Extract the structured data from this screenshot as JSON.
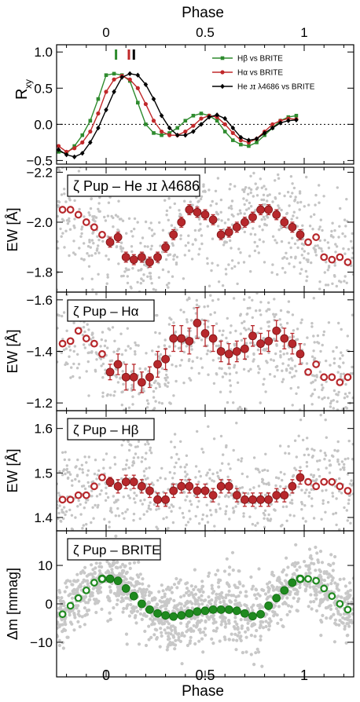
{
  "figure": {
    "top_xlabel": "Phase",
    "bottom_xlabel": "Phase",
    "x_ticks": [
      "0",
      "0.5",
      "1"
    ]
  },
  "chart_data": [
    {
      "type": "line",
      "panel": "cross-correlation",
      "ylabel_main": "R",
      "ylabel_sub": "xy",
      "xlim": [
        -0.25,
        1.25
      ],
      "ylim": [
        -0.55,
        1.1
      ],
      "y_ticks": [
        "1.0",
        "0.5",
        "0.0",
        "−0.5"
      ],
      "markers": [
        {
          "x": 0.05,
          "color": "#2e8b2e"
        },
        {
          "x": 0.115,
          "color": "#c0282a"
        },
        {
          "x": 0.14,
          "color": "#000000"
        }
      ],
      "series": [
        {
          "name": "Hβ vs BRITE",
          "color": "#2e8b2e",
          "marker": "square",
          "x": [
            -0.24,
            -0.2,
            -0.16,
            -0.12,
            -0.08,
            -0.04,
            0.0,
            0.04,
            0.08,
            0.12,
            0.16,
            0.2,
            0.24,
            0.28,
            0.32,
            0.36,
            0.4,
            0.44,
            0.48,
            0.52,
            0.56,
            0.6,
            0.64,
            0.68,
            0.72,
            0.76,
            0.8,
            0.84,
            0.88,
            0.92,
            0.96
          ],
          "y": [
            -0.38,
            -0.4,
            -0.3,
            -0.15,
            0.05,
            0.35,
            0.68,
            0.7,
            0.68,
            0.6,
            0.3,
            0.0,
            -0.12,
            -0.15,
            -0.12,
            -0.05,
            0.05,
            0.12,
            0.15,
            0.12,
            0.05,
            -0.1,
            -0.22,
            -0.28,
            -0.3,
            -0.25,
            -0.15,
            -0.05,
            0.05,
            0.1,
            0.12
          ]
        },
        {
          "name": "Hα vs BRITE",
          "color": "#c0282a",
          "marker": "circle",
          "x": [
            -0.24,
            -0.2,
            -0.16,
            -0.12,
            -0.08,
            -0.04,
            0.0,
            0.04,
            0.08,
            0.12,
            0.16,
            0.2,
            0.24,
            0.28,
            0.32,
            0.36,
            0.4,
            0.44,
            0.48,
            0.52,
            0.56,
            0.6,
            0.64,
            0.68,
            0.72,
            0.76,
            0.8,
            0.84,
            0.88,
            0.92,
            0.96
          ],
          "y": [
            -0.3,
            -0.38,
            -0.33,
            -0.25,
            -0.1,
            0.15,
            0.45,
            0.62,
            0.67,
            0.62,
            0.5,
            0.28,
            0.05,
            -0.1,
            -0.15,
            -0.15,
            -0.1,
            -0.02,
            0.08,
            0.12,
            0.1,
            0.0,
            -0.12,
            -0.22,
            -0.25,
            -0.2,
            -0.1,
            0.0,
            0.05,
            0.08,
            0.07
          ]
        },
        {
          "name": "He ᴊɪ λ4686 vs BRITE",
          "color": "#000000",
          "marker": "diamond",
          "x": [
            -0.24,
            -0.2,
            -0.16,
            -0.12,
            -0.08,
            -0.04,
            0.0,
            0.04,
            0.08,
            0.12,
            0.16,
            0.2,
            0.24,
            0.28,
            0.32,
            0.36,
            0.4,
            0.44,
            0.48,
            0.52,
            0.56,
            0.6,
            0.64,
            0.68,
            0.72,
            0.76,
            0.8,
            0.84,
            0.88,
            0.92,
            0.96
          ],
          "y": [
            -0.35,
            -0.42,
            -0.45,
            -0.4,
            -0.25,
            -0.05,
            0.2,
            0.45,
            0.65,
            0.7,
            0.68,
            0.55,
            0.35,
            0.12,
            -0.05,
            -0.15,
            -0.15,
            -0.1,
            0.0,
            0.1,
            0.13,
            0.08,
            -0.05,
            -0.18,
            -0.22,
            -0.2,
            -0.12,
            -0.05,
            0.02,
            0.05,
            0.06
          ]
        }
      ]
    },
    {
      "type": "scatter",
      "panel": "He II",
      "label": "ζ Pup – He ᴊɪ λ4686",
      "ylabel": "EW [Å]",
      "xlim": [
        -0.25,
        1.25
      ],
      "ylim": [
        -1.72,
        -2.22
      ],
      "y_ticks": [
        {
          "v": -2.2,
          "t": "−2.2"
        },
        {
          "v": -2.0,
          "t": "−2.0"
        },
        {
          "v": -1.8,
          "t": "−1.8"
        }
      ],
      "means_x": [
        0.02,
        0.06,
        0.1,
        0.14,
        0.18,
        0.22,
        0.26,
        0.3,
        0.34,
        0.38,
        0.42,
        0.46,
        0.5,
        0.54,
        0.58,
        0.62,
        0.66,
        0.7,
        0.74,
        0.78,
        0.82,
        0.86,
        0.9,
        0.94,
        0.98
      ],
      "means_y": [
        -1.92,
        -1.94,
        -1.86,
        -1.85,
        -1.86,
        -1.84,
        -1.86,
        -1.9,
        -1.95,
        -2.0,
        -2.05,
        -2.04,
        -2.03,
        -2.01,
        -1.95,
        -1.96,
        -1.98,
        -2.0,
        -2.02,
        -2.05,
        -2.05,
        -2.03,
        -2.0,
        -1.98,
        -1.95
      ],
      "means_err": [
        0.02,
        0.02,
        0.02,
        0.02,
        0.02,
        0.02,
        0.02,
        0.02,
        0.02,
        0.02,
        0.02,
        0.02,
        0.02,
        0.02,
        0.02,
        0.02,
        0.02,
        0.02,
        0.02,
        0.02,
        0.02,
        0.02,
        0.02,
        0.02,
        0.02
      ]
    },
    {
      "type": "scatter",
      "panel": "H-alpha",
      "label": "ζ Pup – Hα",
      "ylabel": "EW [Å]",
      "xlim": [
        -0.25,
        1.25
      ],
      "ylim": [
        -1.17,
        -1.63
      ],
      "y_ticks": [
        {
          "v": -1.6,
          "t": "−1.6"
        },
        {
          "v": -1.4,
          "t": "−1.4"
        },
        {
          "v": -1.2,
          "t": "−1.2"
        }
      ],
      "means_x": [
        0.02,
        0.06,
        0.1,
        0.14,
        0.18,
        0.22,
        0.26,
        0.3,
        0.34,
        0.38,
        0.42,
        0.46,
        0.5,
        0.54,
        0.58,
        0.62,
        0.66,
        0.7,
        0.74,
        0.78,
        0.82,
        0.86,
        0.9,
        0.94,
        0.98
      ],
      "means_y": [
        -1.32,
        -1.35,
        -1.3,
        -1.3,
        -1.28,
        -1.3,
        -1.35,
        -1.37,
        -1.45,
        -1.45,
        -1.44,
        -1.51,
        -1.47,
        -1.45,
        -1.4,
        -1.39,
        -1.4,
        -1.41,
        -1.46,
        -1.43,
        -1.44,
        -1.48,
        -1.45,
        -1.43,
        -1.39
      ],
      "means_err": [
        0.03,
        0.04,
        0.05,
        0.05,
        0.04,
        0.04,
        0.05,
        0.04,
        0.05,
        0.05,
        0.05,
        0.06,
        0.05,
        0.05,
        0.04,
        0.04,
        0.04,
        0.04,
        0.04,
        0.04,
        0.04,
        0.04,
        0.04,
        0.04,
        0.04
      ]
    },
    {
      "type": "scatter",
      "panel": "H-beta",
      "label": "ζ Pup – Hβ",
      "ylabel": "EW [Å]",
      "xlim": [
        -0.25,
        1.25
      ],
      "ylim": [
        1.37,
        1.64
      ],
      "y_ticks": [
        {
          "v": 1.4,
          "t": "1.4"
        },
        {
          "v": 1.5,
          "t": "1.5"
        },
        {
          "v": 1.6,
          "t": "1.6"
        }
      ],
      "means_x": [
        0.02,
        0.06,
        0.1,
        0.14,
        0.18,
        0.22,
        0.26,
        0.3,
        0.34,
        0.38,
        0.42,
        0.46,
        0.5,
        0.54,
        0.58,
        0.62,
        0.66,
        0.7,
        0.74,
        0.78,
        0.82,
        0.86,
        0.9,
        0.94,
        0.98
      ],
      "means_y": [
        1.48,
        1.47,
        1.48,
        1.48,
        1.47,
        1.46,
        1.44,
        1.44,
        1.46,
        1.47,
        1.47,
        1.46,
        1.46,
        1.45,
        1.47,
        1.47,
        1.45,
        1.44,
        1.44,
        1.44,
        1.44,
        1.45,
        1.45,
        1.47,
        1.49
      ],
      "means_err": [
        0.01,
        0.015,
        0.015,
        0.015,
        0.015,
        0.015,
        0.015,
        0.015,
        0.015,
        0.015,
        0.015,
        0.015,
        0.015,
        0.015,
        0.015,
        0.015,
        0.015,
        0.015,
        0.015,
        0.015,
        0.015,
        0.015,
        0.015,
        0.015,
        0.015
      ]
    },
    {
      "type": "scatter",
      "panel": "BRITE",
      "label": "ζ Pup – BRITE",
      "ylabel": "Δm [mmag]",
      "xlim": [
        -0.25,
        1.25
      ],
      "ylim": [
        -19,
        19
      ],
      "y_ticks": [
        {
          "v": -10,
          "t": "−10"
        },
        {
          "v": 0,
          "t": "0"
        },
        {
          "v": 10,
          "t": "10"
        }
      ],
      "means_x": [
        -0.02,
        0.02,
        0.06,
        0.1,
        0.14,
        0.18,
        0.22,
        0.26,
        0.3,
        0.34,
        0.38,
        0.42,
        0.46,
        0.5,
        0.54,
        0.58,
        0.62,
        0.66,
        0.7,
        0.74,
        0.78,
        0.82,
        0.86,
        0.9,
        0.94,
        0.98
      ],
      "means_y": [
        6.5,
        6.5,
        6,
        4,
        2,
        0,
        -1.5,
        -2.5,
        -3,
        -3.3,
        -3,
        -2.5,
        -2,
        -1.8,
        -1.5,
        -1.5,
        -1.5,
        -1.8,
        -2.5,
        -3.2,
        -2.7,
        -0.5,
        1.5,
        3.5,
        5.5,
        6.5
      ],
      "means_err": [
        0,
        0,
        0,
        0,
        0,
        0,
        0,
        0,
        0,
        0,
        0,
        0,
        0,
        0,
        0,
        0,
        0,
        0,
        0,
        0,
        0,
        0,
        0,
        0,
        0,
        0
      ]
    }
  ]
}
